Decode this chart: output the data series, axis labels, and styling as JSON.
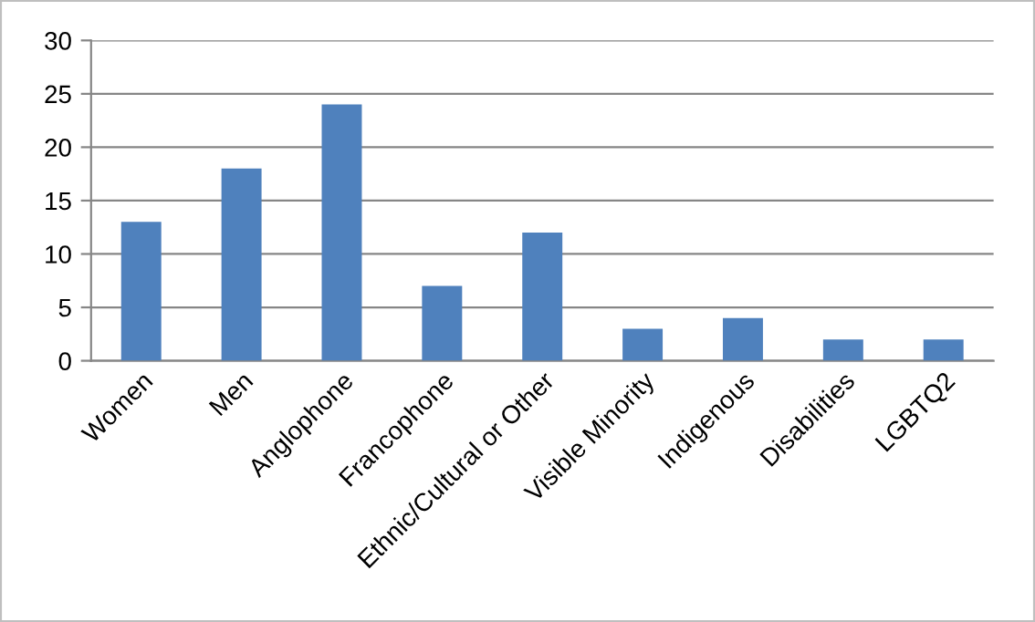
{
  "chart_data": {
    "type": "bar",
    "categories": [
      "Women",
      "Men",
      "Anglophone",
      "Francophone",
      "Ethnic/Cultural or Other",
      "Visible Minority",
      "Indigenous",
      "Disabilities",
      "LGBTQ2"
    ],
    "values": [
      13,
      18,
      24,
      7,
      12,
      3,
      4,
      2,
      2
    ],
    "color": "#4f81bd",
    "ylim": [
      0,
      30
    ],
    "yticks": [
      0,
      5,
      10,
      15,
      20,
      25,
      30
    ],
    "grid": "y",
    "legend": false
  }
}
